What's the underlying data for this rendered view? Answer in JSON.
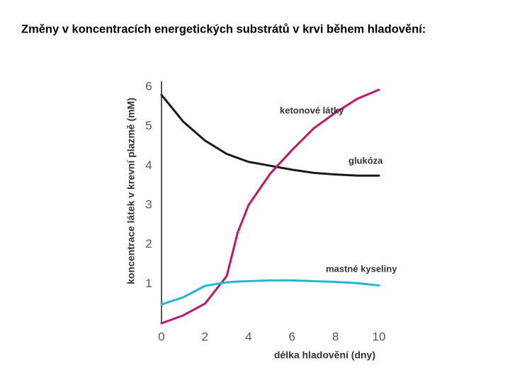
{
  "chart_data": {
    "type": "line",
    "title": "Změny v koncentracích energetických substrátů v krvi během hladovění:",
    "x_label": "délka hladovění (dny)",
    "y_label": "koncentrace látek v krevní plazmě (mM)",
    "x": [
      0,
      1,
      2,
      3,
      3.5,
      4,
      5,
      6,
      7,
      8,
      9,
      10
    ],
    "series": [
      {
        "name": "glukóza",
        "color": "#1a1a1a",
        "values": [
          5.8,
          5.12,
          4.64,
          4.3,
          4.2,
          4.1,
          4.0,
          3.9,
          3.82,
          3.78,
          3.75,
          3.75
        ]
      },
      {
        "name": "ketonové látky",
        "color": "#c0186a",
        "values": [
          0,
          0.2,
          0.5,
          1.2,
          2.3,
          3.0,
          3.8,
          4.4,
          4.95,
          5.35,
          5.7,
          5.93
        ]
      },
      {
        "name": "mastné kyseliny",
        "color": "#22b5d8",
        "values": [
          0.48,
          0.66,
          0.95,
          1.04,
          1.06,
          1.07,
          1.09,
          1.09,
          1.07,
          1.05,
          1.02,
          0.96
        ]
      }
    ],
    "xlim": [
      0,
      10
    ],
    "xticks": [
      0,
      2,
      4,
      6,
      8,
      10
    ],
    "ylim": [
      0,
      6
    ],
    "yticks": [
      1,
      2,
      3,
      4,
      5,
      6
    ]
  }
}
